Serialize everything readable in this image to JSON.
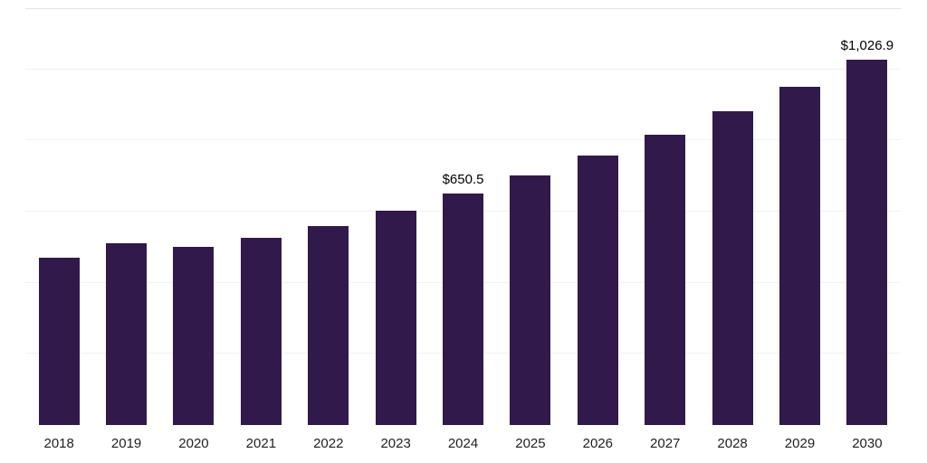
{
  "chart_data": {
    "type": "bar",
    "title": "",
    "xlabel": "",
    "ylabel": "",
    "categories": [
      "2018",
      "2019",
      "2020",
      "2021",
      "2022",
      "2023",
      "2024",
      "2025",
      "2026",
      "2027",
      "2028",
      "2029",
      "2030"
    ],
    "values": [
      470.0,
      511.0,
      501.0,
      527.0,
      560.0,
      603.0,
      650.5,
      701.9,
      757.4,
      817.3,
      881.9,
      951.6,
      1026.9
    ],
    "data_labels": {
      "2024": "$650.5",
      "2030": "$1,026.9"
    },
    "bar_color": "#31194b",
    "ylim": [
      0,
      1170
    ],
    "gridline_values": [
      200,
      400,
      600,
      800,
      1000,
      1170
    ],
    "grid": true,
    "legend": "none"
  }
}
